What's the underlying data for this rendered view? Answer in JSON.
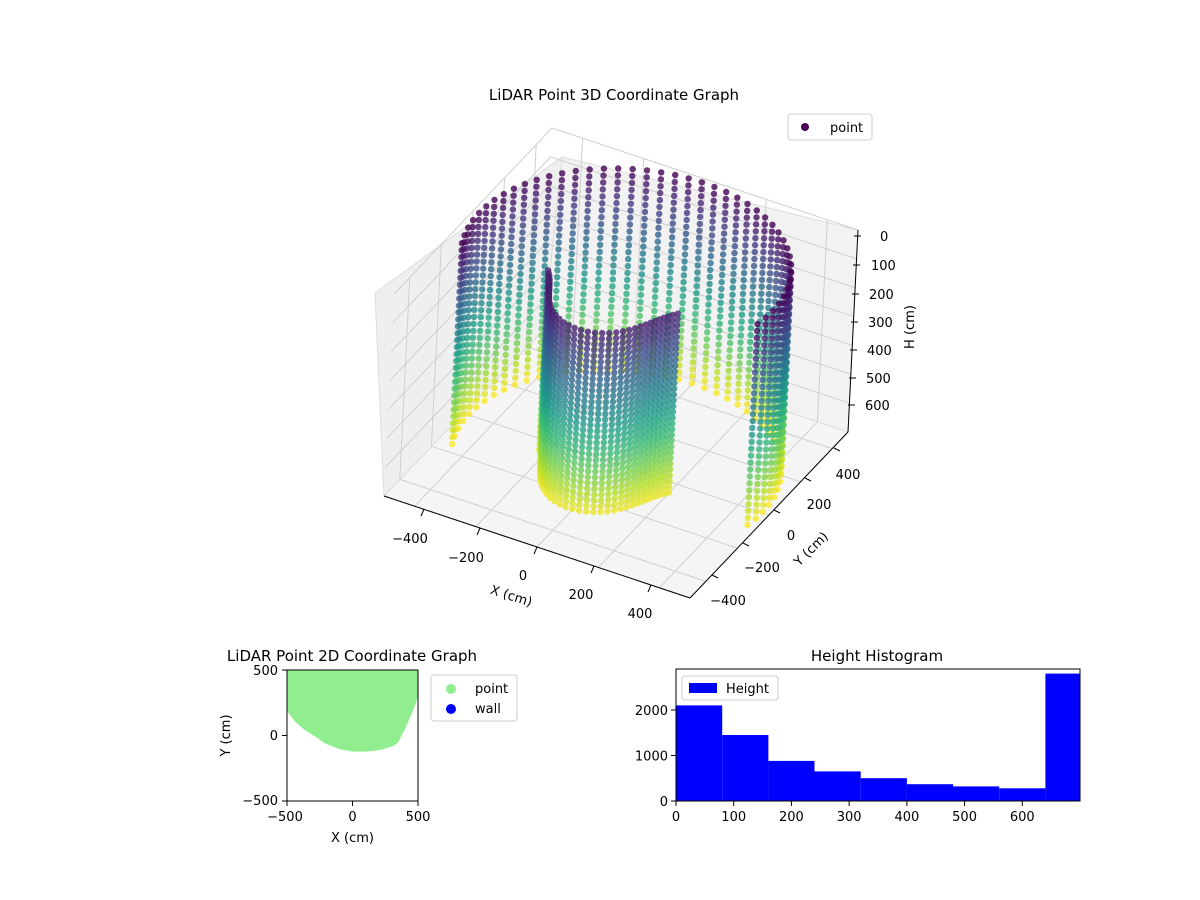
{
  "chart_data": [
    {
      "type": "scatter3d",
      "title": "LiDAR Point 3D Coordinate Graph",
      "xlabel": "X (cm)",
      "ylabel": "Y (cm)",
      "zlabel": "H (cm)",
      "xlim": [
        -500,
        500
      ],
      "ylim": [
        -500,
        500
      ],
      "zlim": [
        0,
        700
      ],
      "z_inverted": true,
      "xticks": [
        "−400",
        "−200",
        "0",
        "200",
        "400"
      ],
      "yticks": [
        "−400",
        "−200",
        "0",
        "200",
        "400"
      ],
      "zticks": [
        "0",
        "100",
        "200",
        "300",
        "400",
        "500",
        "600"
      ],
      "colormap": "viridis",
      "legend": {
        "placement": "top-right",
        "entries": [
          {
            "label": "point",
            "color": "#440154"
          }
        ]
      },
      "grid": true,
      "point_cloud": {
        "shape": "partial cylindrical wall scan",
        "radius": 480,
        "height_range": [
          0,
          700
        ],
        "angle_range_deg": [
          -10,
          200
        ]
      }
    },
    {
      "type": "scatter",
      "title": "LiDAR Point 2D Coordinate Graph",
      "xlabel": "X (cm)",
      "ylabel": "Y (cm)",
      "xlim": [
        -500,
        500
      ],
      "ylim": [
        -500,
        500
      ],
      "xticks": [
        "−500",
        "0",
        "500"
      ],
      "yticks": [
        "−500",
        "0",
        "500"
      ],
      "legend": {
        "placement": "outside-right",
        "entries": [
          {
            "label": "point",
            "color": "#90ee90"
          },
          {
            "label": "wall",
            "color": "#0000ff"
          }
        ]
      },
      "region_outline": [
        [
          -500,
          500
        ],
        [
          -500,
          300
        ],
        [
          -480,
          200
        ],
        [
          -420,
          120
        ],
        [
          -350,
          60
        ],
        [
          -270,
          10
        ],
        [
          -200,
          -40
        ],
        [
          -100,
          -80
        ],
        [
          0,
          -100
        ],
        [
          100,
          -100
        ],
        [
          200,
          -90
        ],
        [
          300,
          -60
        ],
        [
          330,
          -40
        ],
        [
          380,
          60
        ],
        [
          420,
          150
        ],
        [
          460,
          250
        ],
        [
          490,
          350
        ],
        [
          500,
          450
        ],
        [
          500,
          500
        ]
      ],
      "point_color": "#90ee90"
    },
    {
      "type": "bar",
      "title": "Height Histogram",
      "xlabel": "",
      "ylabel": "",
      "xlim": [
        0,
        700
      ],
      "ylim": [
        0,
        2900
      ],
      "xticks": [
        0,
        100,
        200,
        300,
        400,
        500,
        600
      ],
      "yticks": [
        0,
        1000,
        2000
      ],
      "bin_edges": [
        0,
        80,
        160,
        240,
        320,
        400,
        480,
        560,
        640,
        700
      ],
      "values": [
        2100,
        1450,
        880,
        650,
        500,
        370,
        320,
        280,
        2800
      ],
      "color": "#0000ff",
      "legend": {
        "placement": "top-left",
        "entries": [
          {
            "label": "Height",
            "color": "#0000ff"
          }
        ]
      }
    }
  ]
}
